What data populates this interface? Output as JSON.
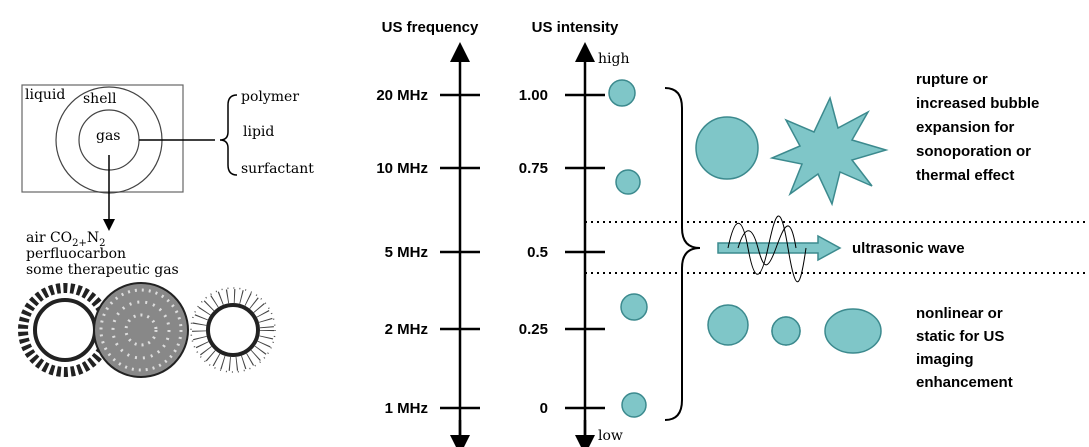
{
  "left": {
    "liquid": "liquid",
    "shell": "shell",
    "gas": "gas",
    "shell_materials": [
      "polymer",
      "lipid",
      "surfactant"
    ],
    "gas_line1": [
      "air CO",
      "2+",
      "N",
      "2"
    ],
    "gas_lines": [
      "perfluocarbon",
      "some therapeutic gas"
    ]
  },
  "axes": {
    "frequency_title": "US frequency",
    "intensity_title": "US intensity",
    "high": "high",
    "low": "low",
    "frequencies": [
      "20 MHz",
      "10 MHz",
      "5 MHz",
      "2 MHz",
      "1 MHz"
    ],
    "intensities": [
      "1.00",
      "0.75",
      "0.5",
      "0.25",
      "0"
    ]
  },
  "right": {
    "upper": [
      "rupture or",
      "increased bubble",
      "expansion for",
      "sonoporation or",
      "thermal effect"
    ],
    "wave": "ultrasonic wave",
    "lower": [
      "nonlinear or",
      "static for US",
      "imaging",
      "enhancement"
    ]
  }
}
